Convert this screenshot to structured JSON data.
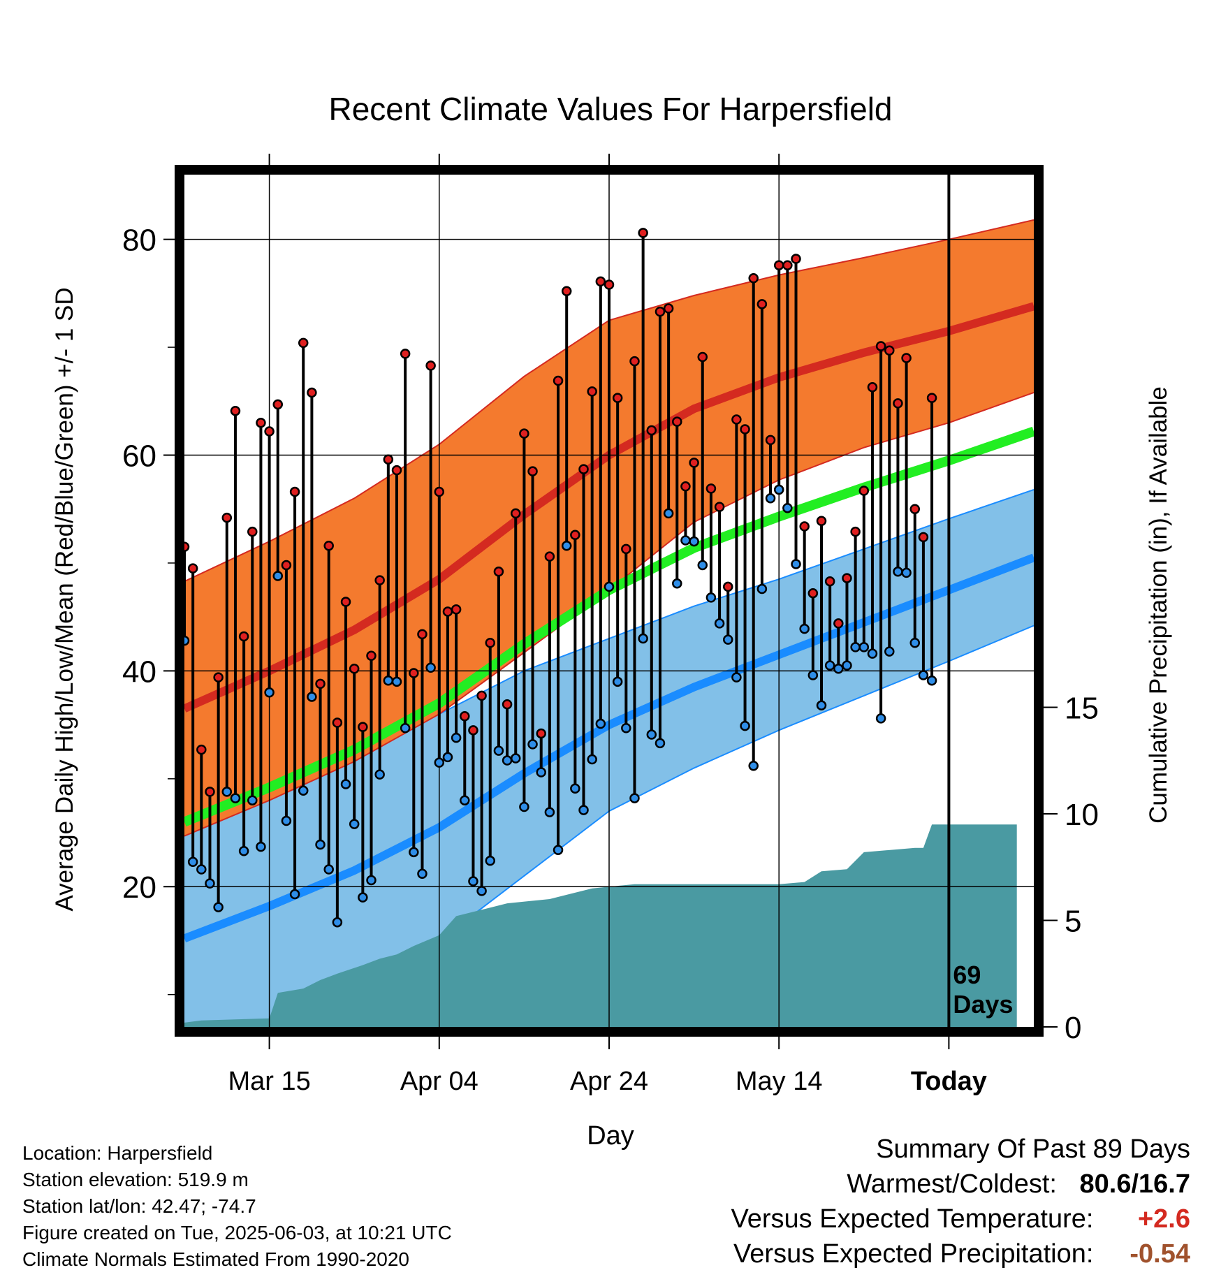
{
  "chart_data": {
    "type": "line",
    "title": "Recent Climate Values For Harpersfield",
    "xlabel": "Day",
    "ylabel": "Average Daily High/Low/Mean (Red/Blue/Green) +/- 1 SD",
    "y2label": "Cumulative Precipitation (in), If Available",
    "ylim": [
      7,
      86
    ],
    "y2lim": [
      0,
      40
    ],
    "yticks": [
      20,
      40,
      60,
      80
    ],
    "y2ticks": [
      0,
      5,
      10,
      15
    ],
    "x_tick_labels": [
      {
        "day": 10,
        "label": "Mar 15"
      },
      {
        "day": 30,
        "label": "Apr 04"
      },
      {
        "day": 50,
        "label": "Apr 24"
      },
      {
        "day": 70,
        "label": "May 14"
      },
      {
        "day": 90,
        "label": "Today"
      }
    ],
    "xlim": [
      0,
      100
    ],
    "today_day": 90,
    "annotation": [
      "69",
      "Days"
    ],
    "grid": true,
    "colors": {
      "high_band": "#f47a2e",
      "high_mean": "#d42a20",
      "low_band": "#82c0e8",
      "low_mean": "#1a8cff",
      "mean_line": "#22ee22",
      "precip": "#4a9aa2",
      "high_marker": "#e02020",
      "low_marker": "#2f8ee8"
    },
    "normals": {
      "days": [
        0,
        10,
        20,
        30,
        40,
        50,
        60,
        70,
        80,
        90,
        100
      ],
      "high_mean": [
        36.5,
        40,
        43.8,
        48.5,
        54.5,
        60,
        64.3,
        67.2,
        69.5,
        71.5,
        73.8
      ],
      "high_sd": [
        11.8,
        12,
        12.2,
        12.5,
        12.8,
        12.5,
        10.5,
        9.5,
        8.8,
        8.5,
        8.0
      ],
      "low_mean": [
        15.2,
        18.2,
        21.5,
        25.5,
        30.5,
        35,
        38.5,
        41.5,
        44.5,
        47.5,
        50.5
      ],
      "low_sd": [
        11,
        11,
        11,
        10.5,
        9.5,
        8,
        7.5,
        7,
        6.8,
        6.6,
        6.3
      ],
      "mean": [
        26,
        29.2,
        32.7,
        37,
        42.5,
        47.5,
        51.4,
        54.3,
        57,
        59.5,
        62.2
      ]
    },
    "series": [
      {
        "name": "High",
        "values": [
          51.5,
          49.5,
          32.7,
          28.8,
          39.4,
          54.2,
          64.1,
          43.2,
          52.9,
          63,
          62.2,
          64.7,
          49.8,
          56.6,
          70.4,
          65.8,
          38.8,
          51.6,
          35.2,
          46.4,
          40.2,
          34.8,
          41.4,
          48.4,
          59.6,
          58.6,
          69.4,
          39.8,
          43.4,
          68.3,
          56.6,
          45.5,
          45.7,
          35.8,
          34.5,
          37.7,
          42.6,
          49.2,
          36.9,
          54.6,
          62,
          58.5,
          34.2,
          50.6,
          66.9,
          75.2,
          52.6,
          58.7,
          65.9,
          76.1,
          75.8,
          65.3,
          51.3,
          68.7,
          80.6,
          62.3,
          73.3,
          73.6,
          63.1,
          57.1,
          59.3,
          69.1,
          56.9,
          55.2,
          47.8,
          63.3,
          62.4,
          76.4,
          74,
          61.4,
          77.6,
          77.6,
          78.2,
          53.4,
          47.2,
          53.9,
          48.3,
          44.4,
          48.6,
          52.9,
          56.7,
          66.3,
          70.1,
          69.7,
          64.8,
          69,
          55,
          52.4,
          65.3
        ]
      },
      {
        "name": "Low",
        "values": [
          42.8,
          22.3,
          21.6,
          20.3,
          18.1,
          28.8,
          28.2,
          23.3,
          28,
          23.7,
          38,
          48.8,
          26.1,
          19.3,
          28.9,
          37.6,
          23.9,
          21.6,
          16.7,
          29.5,
          25.8,
          19,
          20.6,
          30.4,
          39.1,
          39,
          34.7,
          23.2,
          21.2,
          40.3,
          31.5,
          32,
          33.8,
          28,
          20.5,
          19.6,
          22.4,
          32.6,
          31.7,
          31.9,
          27.4,
          33.2,
          30.6,
          26.9,
          23.4,
          51.6,
          29.1,
          27.1,
          31.8,
          35.1,
          47.8,
          39,
          34.7,
          28.2,
          43,
          34.1,
          33.3,
          54.6,
          48.1,
          52.1,
          52,
          49.8,
          46.8,
          44.4,
          42.9,
          39.4,
          34.9,
          31.2,
          47.6,
          56,
          56.8,
          55.1,
          49.9,
          43.9,
          39.6,
          36.8,
          40.5,
          40.2,
          40.5,
          42.2,
          42.2,
          41.6,
          35.6,
          41.8,
          49.2,
          49.1,
          42.6,
          39.6,
          39.1
        ]
      }
    ],
    "precipitation": {
      "days": [
        0,
        2,
        10,
        11,
        14,
        16,
        18,
        21,
        23,
        25,
        27,
        30,
        32,
        36,
        38,
        43,
        45,
        48,
        53,
        60,
        70,
        73,
        75,
        78,
        80,
        86,
        87,
        88,
        98
      ],
      "values": [
        0.2,
        0.3,
        0.4,
        1.6,
        1.8,
        2.2,
        2.5,
        2.9,
        3.2,
        3.4,
        3.8,
        4.3,
        5.2,
        5.6,
        5.8,
        6.0,
        6.2,
        6.5,
        6.7,
        6.7,
        6.7,
        6.8,
        7.3,
        7.4,
        8.2,
        8.4,
        8.4,
        9.5,
        9.5
      ]
    }
  },
  "footer": {
    "location": "Location: Harpersfield",
    "elevation": "Station elevation: 519.9 m",
    "latlon": "Station lat/lon: 42.47; -74.7",
    "created": "Figure created on Tue, 2025-06-03, at 10:21 UTC",
    "normals": "Climate Normals Estimated From 1990-2020"
  },
  "summary": {
    "heading": "Summary Of Past 89 Days",
    "warmest_label": "Warmest/Coldest:",
    "warmest_value": "80.6/16.7",
    "temp_label": "Versus Expected Temperature:",
    "temp_value": "+2.6",
    "temp_color": "#d42a20",
    "precip_label": "Versus Expected Precipitation:",
    "precip_value": "-0.54",
    "precip_color": "#a0522d"
  }
}
